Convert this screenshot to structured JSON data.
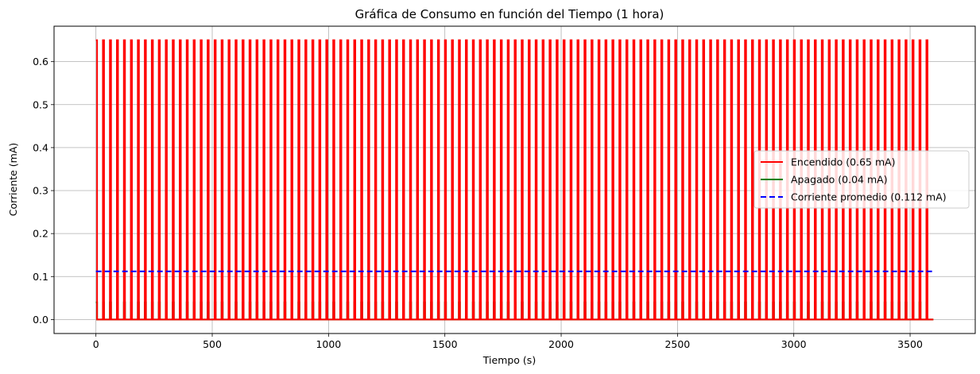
{
  "chart_data": {
    "type": "line",
    "title": "Gráfica de Consumo en función del Tiempo (1 hora)",
    "xlabel": "Tiempo (s)",
    "ylabel": "Corriente (mA)",
    "xlim": [
      -180,
      3780
    ],
    "ylim": [
      -0.0325,
      0.6825
    ],
    "x_ticks": [
      0,
      500,
      1000,
      1500,
      2000,
      2500,
      3000,
      3500
    ],
    "x_tick_labels": [
      "0",
      "500",
      "1000",
      "1500",
      "2000",
      "2500",
      "3000",
      "3500"
    ],
    "y_ticks": [
      0.0,
      0.1,
      0.2,
      0.3,
      0.4,
      0.5,
      0.6
    ],
    "y_tick_labels": [
      "0.0",
      "0.1",
      "0.2",
      "0.3",
      "0.4",
      "0.5",
      "0.6"
    ],
    "grid": true,
    "legend_position": "center-right",
    "pulse_period_s": 30,
    "pulse_on_s": 5,
    "pulse_count": 120,
    "series": [
      {
        "name": "Encendido (0.65 mA)",
        "color": "#ff0000",
        "style": "solid",
        "pulse_value": 0.65,
        "base_value": 0.0
      },
      {
        "name": "Apagado (0.04 mA)",
        "color": "#008000",
        "style": "solid",
        "pulse_value": 0.04,
        "base_value": 0.0
      },
      {
        "name": "Corriente promedio (0.112 mA)",
        "color": "#0000ff",
        "style": "dashed",
        "constant_value": 0.112,
        "x_range": [
          0,
          3600
        ]
      }
    ]
  }
}
